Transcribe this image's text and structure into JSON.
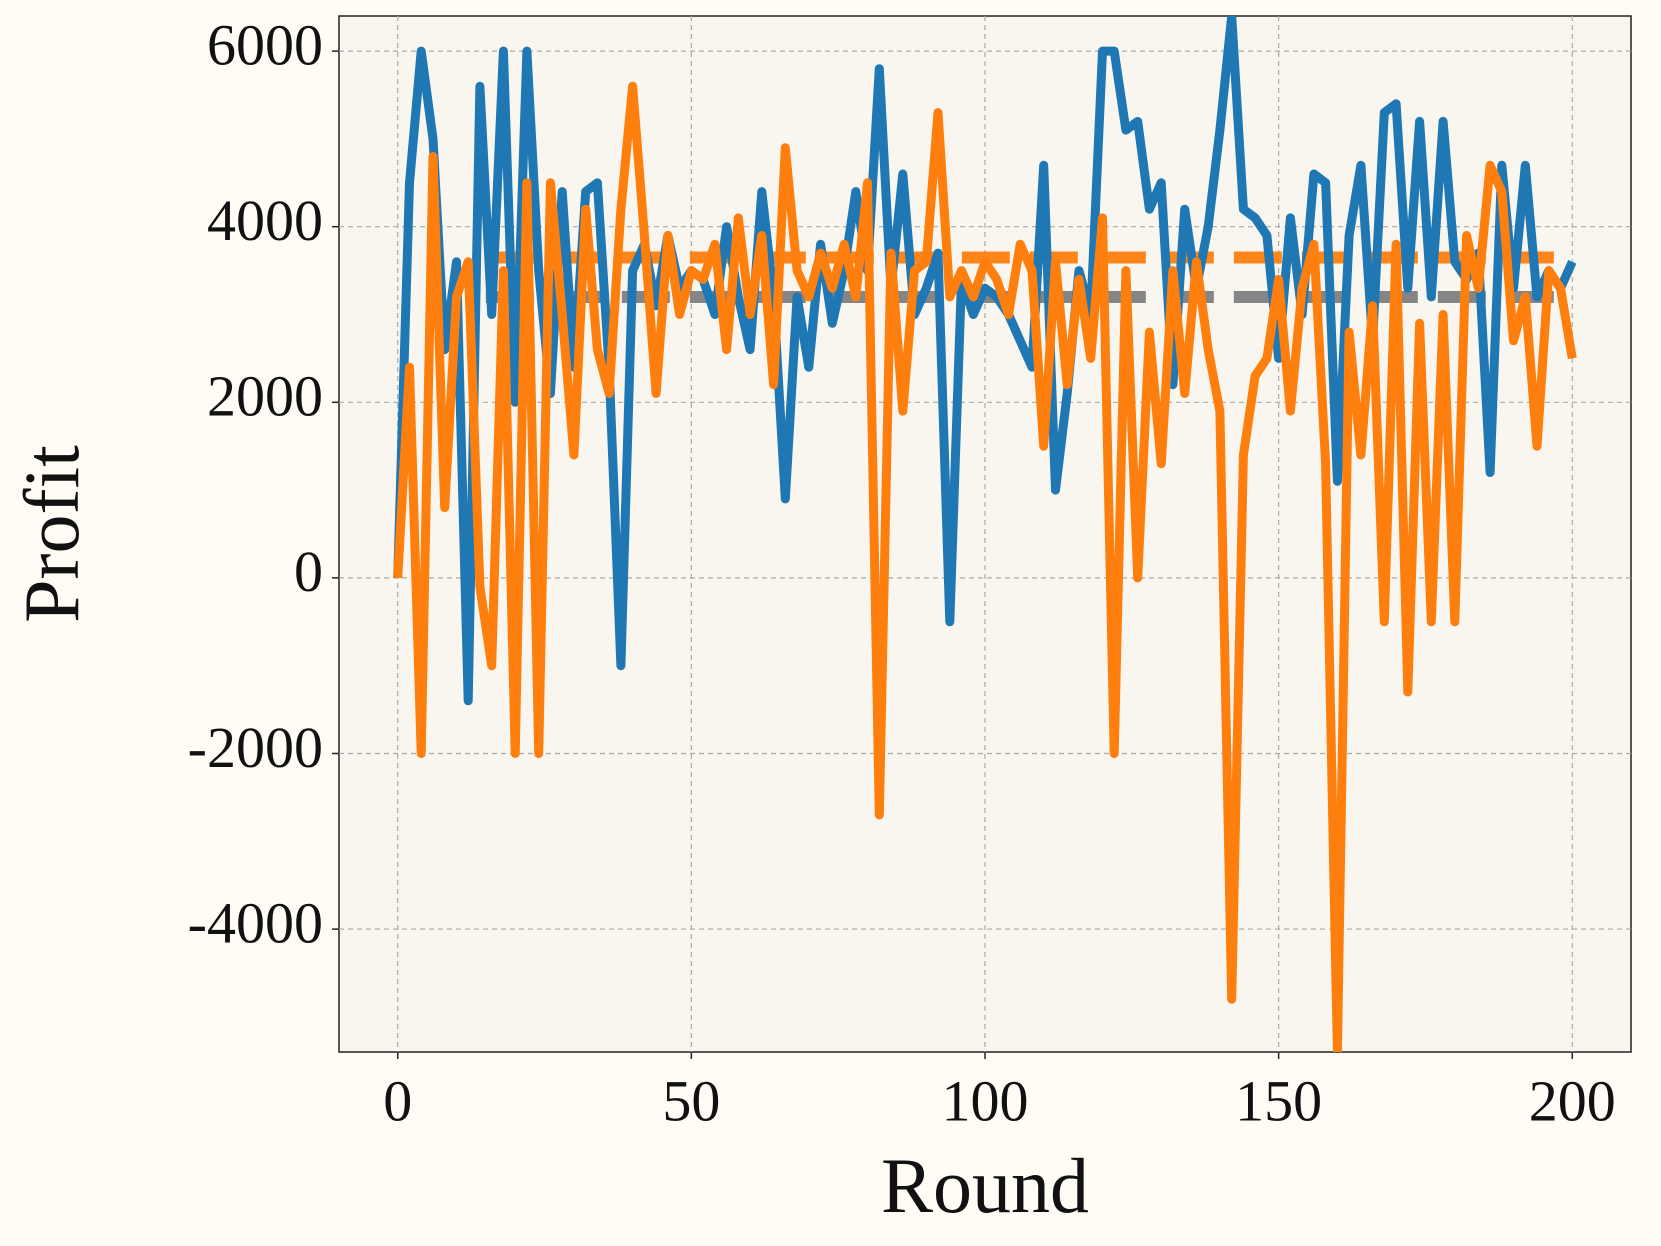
{
  "chart_data": {
    "type": "line",
    "xlabel": "Round",
    "ylabel": "Profit",
    "x": [
      0,
      2,
      4,
      6,
      8,
      10,
      12,
      14,
      16,
      18,
      20,
      22,
      24,
      26,
      28,
      30,
      32,
      34,
      36,
      38,
      40,
      42,
      44,
      46,
      48,
      50,
      52,
      54,
      56,
      58,
      60,
      62,
      64,
      66,
      68,
      70,
      72,
      74,
      76,
      78,
      80,
      82,
      84,
      86,
      88,
      90,
      92,
      94,
      96,
      98,
      100,
      102,
      104,
      106,
      108,
      110,
      112,
      114,
      116,
      118,
      120,
      122,
      124,
      126,
      128,
      130,
      132,
      134,
      136,
      138,
      140,
      142,
      144,
      146,
      148,
      150,
      152,
      154,
      156,
      158,
      160,
      162,
      164,
      166,
      168,
      170,
      172,
      174,
      176,
      178,
      180,
      182,
      184,
      186,
      188,
      190,
      192,
      194,
      196,
      198,
      200
    ],
    "series": [
      {
        "color": "#1f77b4",
        "values": [
          0,
          4500,
          6000,
          5000,
          2600,
          3600,
          -1400,
          5600,
          3000,
          6000,
          2000,
          6000,
          3500,
          2100,
          4400,
          2400,
          4400,
          4500,
          2400,
          -1000,
          3500,
          3800,
          3100,
          3900,
          3300,
          3500,
          3400,
          3000,
          4000,
          3200,
          2600,
          4400,
          3200,
          900,
          3200,
          2400,
          3800,
          2900,
          3500,
          4400,
          3500,
          5800,
          3300,
          4600,
          3000,
          3300,
          3700,
          -500,
          3400,
          3000,
          3300,
          3200,
          3000,
          2700,
          2400,
          4700,
          1000,
          2100,
          3500,
          3000,
          6000,
          6000,
          5100,
          5200,
          4200,
          4500,
          2200,
          4200,
          3300,
          4000,
          5100,
          6400,
          4200,
          4100,
          3900,
          2500,
          4100,
          3000,
          4600,
          4500,
          1100,
          3900,
          4700,
          2700,
          5300,
          5400,
          3300,
          5200,
          3200,
          5200,
          3600,
          3400,
          3700,
          1200,
          4700,
          3300,
          4700,
          3200,
          3500,
          3300,
          3600
        ]
      },
      {
        "color": "#ff7f0e",
        "values": [
          0,
          2400,
          -2000,
          4800,
          800,
          3200,
          3600,
          -100,
          -1000,
          3500,
          -2000,
          4500,
          -2000,
          4500,
          3000,
          1400,
          4200,
          2600,
          2100,
          4200,
          5600,
          3900,
          2100,
          3900,
          3000,
          3500,
          3400,
          3800,
          2600,
          4100,
          3000,
          3900,
          2200,
          4900,
          3500,
          3200,
          3700,
          3300,
          3800,
          3200,
          4500,
          -2700,
          3700,
          1900,
          3500,
          3600,
          5300,
          3200,
          3500,
          3200,
          3600,
          3400,
          3000,
          3800,
          3500,
          1500,
          3600,
          2200,
          3400,
          2500,
          4100,
          -2000,
          3500,
          0,
          2800,
          1300,
          3500,
          2100,
          3600,
          2600,
          1900,
          -4800,
          1400,
          2300,
          2500,
          3400,
          1900,
          3300,
          3800,
          1300,
          -5400,
          2800,
          1400,
          3100,
          -500,
          3800,
          -1300,
          2900,
          -500,
          3000,
          -500,
          3900,
          3300,
          4700,
          4400,
          2700,
          3200,
          1500,
          3500,
          3300,
          2500
        ]
      }
    ],
    "hlines": [
      {
        "value": 3200,
        "color": "#808080",
        "x": [
          15,
          200
        ]
      },
      {
        "value": 3650,
        "color": "#ff7f0e",
        "x": [
          15,
          200
        ]
      }
    ],
    "xlim": [
      -10,
      210
    ],
    "ylim": [
      -5400,
      6400
    ],
    "xticks": [
      0,
      50,
      100,
      150,
      200
    ],
    "yticks": [
      -4000,
      -2000,
      0,
      2000,
      4000,
      6000
    ],
    "grid": true
  }
}
